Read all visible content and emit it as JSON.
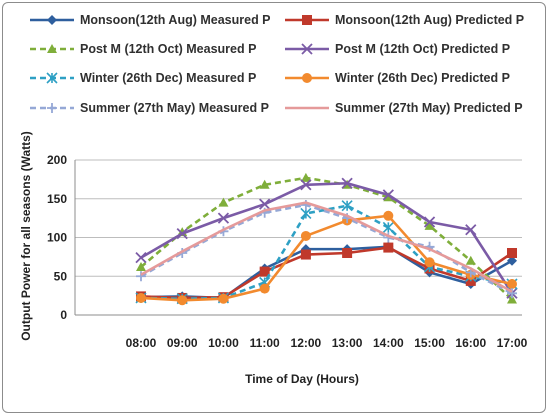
{
  "chart_data": {
    "type": "line",
    "title": "",
    "xlabel": "Time of Day (Hours)",
    "ylabel": "Output Power for all seasons  (Watts)",
    "categories": [
      "08:00",
      "09:00",
      "10:00",
      "11:00",
      "12:00",
      "13:00",
      "14:00",
      "15:00",
      "16:00",
      "17:00"
    ],
    "ylim": [
      0,
      200
    ],
    "yticks": [
      0,
      50,
      100,
      150,
      200
    ],
    "grid": true,
    "legend_position": "top",
    "series": [
      {
        "name": "Monsoon(12th Aug) Measured P",
        "color": "#2e5f9e",
        "dash": "solid",
        "marker": "diamond",
        "values": [
          23,
          24,
          22,
          60,
          85,
          85,
          88,
          55,
          40,
          70
        ]
      },
      {
        "name": "Monsoon(12th Aug) Predicted P",
        "color": "#c0392b",
        "dash": "solid",
        "marker": "square",
        "values": [
          24,
          22,
          23,
          56,
          78,
          80,
          87,
          60,
          44,
          80
        ]
      },
      {
        "name": "Post M (12th Oct) Measured P",
        "color": "#7fae3a",
        "dash": "dashed",
        "marker": "triangle",
        "values": [
          62,
          107,
          145,
          168,
          177,
          168,
          152,
          115,
          70,
          20
        ]
      },
      {
        "name": "Post M (12th Oct) Predicted P",
        "color": "#7b5ba6",
        "dash": "solid",
        "marker": "x",
        "values": [
          74,
          105,
          125,
          143,
          168,
          170,
          155,
          120,
          110,
          28
        ]
      },
      {
        "name": "Winter (26th Dec) Measured P",
        "color": "#2ea0c4",
        "dash": "dashed",
        "marker": "star",
        "values": [
          22,
          21,
          22,
          42,
          131,
          141,
          113,
          62,
          50,
          40
        ]
      },
      {
        "name": "Winter (26th Dec) Predicted P",
        "color": "#f28a2e",
        "dash": "solid",
        "marker": "circle",
        "values": [
          22,
          19,
          21,
          34,
          102,
          122,
          128,
          68,
          52,
          40
        ]
      },
      {
        "name": "Summer (27th May) Measured P",
        "color": "#95a8d6",
        "dash": "dashed",
        "marker": "plus",
        "values": [
          50,
          80,
          108,
          132,
          142,
          125,
          100,
          88,
          55,
          28
        ]
      },
      {
        "name": "Summer (27th May) Predicted P",
        "color": "#e59a9a",
        "dash": "solid",
        "marker": "none",
        "values": [
          52,
          82,
          110,
          135,
          145,
          128,
          102,
          85,
          60,
          30
        ]
      }
    ]
  }
}
